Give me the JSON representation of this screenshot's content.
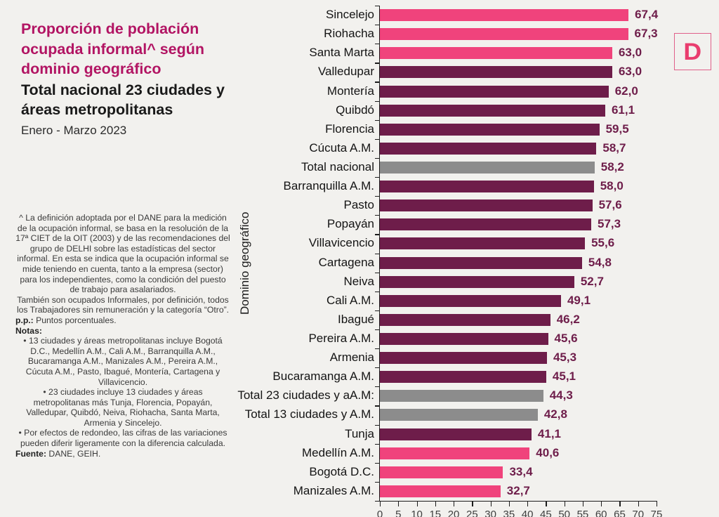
{
  "header": {
    "title": "Proporción de población ocupada informal^ según dominio geográfico",
    "subtitle": "Total nacional 23 ciudades y áreas metropolitanas",
    "period": "Enero - Marzo 2023"
  },
  "logo": {
    "letter": "D"
  },
  "notes": [
    {
      "bold": "",
      "text": "^ La definición adoptada por el DANE para la medición de la ocupación informal, se basa en la resolución de la 17ª CIET de la OIT (2003) y de las recomendaciones del grupo de DELHI sobre las estadísticas del sector informal. En esta se indica que la ocupación informal se mide teniendo en cuenta, tanto a la empresa (sector) para los independientes, como la condición del puesto de trabajo para asalariados.",
      "align": "center"
    },
    {
      "bold": "",
      "text": "También son ocupados Informales, por definición, todos los Trabajadores sin remuneración y la categoría “Otro”.",
      "align": "center"
    },
    {
      "bold": "p.p.:",
      "text": " Puntos porcentuales.",
      "align": "left"
    },
    {
      "bold": "Notas:",
      "text": "",
      "align": "left"
    },
    {
      "bold": "",
      "text": "• 13 ciudades y áreas metropolitanas incluye Bogotá D.C., Medellín A.M., Cali A.M., Barranquilla A.M., Bucaramanga A.M., Manizales A.M., Pereira A.M., Cúcuta A.M., Pasto, Ibagué, Montería, Cartagena y Villavicencio.",
      "align": "center"
    },
    {
      "bold": "",
      "text": "• 23 ciudades incluye 13 ciudades y áreas metropolitanas más Tunja, Florencia, Popayán, Valledupar, Quibdó, Neiva, Riohacha, Santa Marta, Armenia y Sincelejo.",
      "align": "center"
    },
    {
      "bold": "",
      "text": "• Por efectos de redondeo, las cifras de las variaciones pueden diferir ligeramente con la diferencia calculada.",
      "align": "center"
    },
    {
      "bold": "Fuente:",
      "text": " DANE, GEIH.",
      "align": "left"
    }
  ],
  "chart_data": {
    "type": "bar",
    "orientation": "horizontal",
    "title": "Proporción de población ocupada informal según dominio geográfico",
    "subtitle": "Total nacional 23 ciudades y áreas metropolitanas, Enero - Marzo 2023",
    "ylabel": "Dominio geográfico",
    "xlabel": "",
    "xlim": [
      0,
      75
    ],
    "x_ticks": [
      "0",
      "5",
      "10",
      "15",
      "20",
      "25",
      "30",
      "35",
      "40",
      "45",
      "50",
      "55",
      "60",
      "65",
      "70",
      "75"
    ],
    "grid": false,
    "legend": "none",
    "value_format": "comma-decimal",
    "colors": {
      "pink": "#f0437c",
      "dark": "#6e1d4a",
      "gray": "#8c8c8c"
    },
    "bars": [
      {
        "label": "Sincelejo",
        "value": 67.4,
        "display": "67,4",
        "color": "pink"
      },
      {
        "label": "Riohacha",
        "value": 67.3,
        "display": "67,3",
        "color": "pink"
      },
      {
        "label": "Santa Marta",
        "value": 63.0,
        "display": "63,0",
        "color": "pink"
      },
      {
        "label": "Valledupar",
        "value": 63.0,
        "display": "63,0",
        "color": "dark"
      },
      {
        "label": "Montería",
        "value": 62.0,
        "display": "62,0",
        "color": "dark"
      },
      {
        "label": "Quibdó",
        "value": 61.1,
        "display": "61,1",
        "color": "dark"
      },
      {
        "label": "Florencia",
        "value": 59.5,
        "display": "59,5",
        "color": "dark"
      },
      {
        "label": "Cúcuta A.M.",
        "value": 58.7,
        "display": "58,7",
        "color": "dark"
      },
      {
        "label": "Total nacional",
        "value": 58.2,
        "display": "58,2",
        "color": "gray"
      },
      {
        "label": "Barranquilla A.M.",
        "value": 58.0,
        "display": "58,0",
        "color": "dark"
      },
      {
        "label": "Pasto",
        "value": 57.6,
        "display": "57,6",
        "color": "dark"
      },
      {
        "label": "Popayán",
        "value": 57.3,
        "display": "57,3",
        "color": "dark"
      },
      {
        "label": "Villavicencio",
        "value": 55.6,
        "display": "55,6",
        "color": "dark"
      },
      {
        "label": "Cartagena",
        "value": 54.8,
        "display": "54,8",
        "color": "dark"
      },
      {
        "label": "Neiva",
        "value": 52.7,
        "display": "52,7",
        "color": "dark"
      },
      {
        "label": "Cali A.M.",
        "value": 49.1,
        "display": "49,1",
        "color": "dark"
      },
      {
        "label": "Ibagué",
        "value": 46.2,
        "display": "46,2",
        "color": "dark"
      },
      {
        "label": "Pereira A.M.",
        "value": 45.6,
        "display": "45,6",
        "color": "dark"
      },
      {
        "label": "Armenia",
        "value": 45.3,
        "display": "45,3",
        "color": "dark"
      },
      {
        "label": "Bucaramanga A.M.",
        "value": 45.1,
        "display": "45,1",
        "color": "dark"
      },
      {
        "label": "Total 23 ciudades y aA.M:",
        "value": 44.3,
        "display": "44,3",
        "color": "gray"
      },
      {
        "label": "Total 13 ciudades y A.M.",
        "value": 42.8,
        "display": "42,8",
        "color": "gray"
      },
      {
        "label": "Tunja",
        "value": 41.1,
        "display": "41,1",
        "color": "dark"
      },
      {
        "label": "Medellín A.M.",
        "value": 40.6,
        "display": "40,6",
        "color": "pink"
      },
      {
        "label": "Bogotá D.C.",
        "value": 33.4,
        "display": "33,4",
        "color": "pink"
      },
      {
        "label": "Manizales A.M.",
        "value": 32.7,
        "display": "32,7",
        "color": "pink"
      }
    ]
  }
}
